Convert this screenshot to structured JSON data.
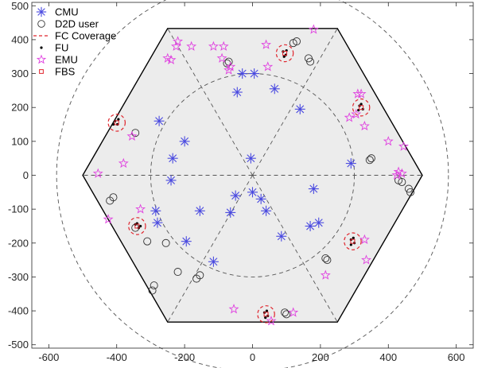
{
  "chart_data": {
    "type": "scatter",
    "title": "",
    "xlabel": "",
    "ylabel": "",
    "xlim": [
      -650,
      650
    ],
    "ylim": [
      -510,
      510
    ],
    "xticks": [
      -600,
      -400,
      -200,
      0,
      200,
      400,
      600
    ],
    "yticks": [
      -500,
      -400,
      -300,
      -200,
      -100,
      0,
      100,
      200,
      300,
      400,
      500
    ],
    "xtick_labels": [
      "-600",
      "-400",
      "-200",
      "0",
      "200",
      "400",
      "600"
    ],
    "ytick_labels": [
      "-500",
      "-400",
      "-300",
      "-200",
      "-100",
      "0",
      "100",
      "200",
      "300",
      "400",
      "500"
    ],
    "grid": false,
    "legend_position": "top-left",
    "cell": {
      "hexagon_radius": 500,
      "inner_circle_radius": 300,
      "outer_circle_radius": 577,
      "hexagon_fill": "#ececec",
      "hexagon_edge": "#000000",
      "dashed_color": "#555555"
    },
    "series": [
      {
        "name": "CMU",
        "marker": "asterisk",
        "color": "#4a4ae0",
        "points": [
          [
            -200,
            100
          ],
          [
            -235,
            50
          ],
          [
            -240,
            -15
          ],
          [
            -275,
            160
          ],
          [
            -285,
            -105
          ],
          [
            -280,
            -140
          ],
          [
            -195,
            -195
          ],
          [
            -155,
            -105
          ],
          [
            -115,
            -255
          ],
          [
            -45,
            245
          ],
          [
            -30,
            300
          ],
          [
            -5,
            50
          ],
          [
            5,
            300
          ],
          [
            65,
            255
          ],
          [
            140,
            195
          ],
          [
            290,
            35
          ],
          [
            -65,
            -110
          ],
          [
            -50,
            -60
          ],
          [
            0,
            -50
          ],
          [
            25,
            -70
          ],
          [
            40,
            -105
          ],
          [
            85,
            -180
          ],
          [
            180,
            -40
          ],
          [
            170,
            -150
          ],
          [
            195,
            -140
          ]
        ]
      },
      {
        "name": "D2D user",
        "marker": "circle",
        "color": "#333333",
        "points": [
          [
            -345,
            125
          ],
          [
            -420,
            -75
          ],
          [
            -410,
            -65
          ],
          [
            -345,
            -155
          ],
          [
            -310,
            -195
          ],
          [
            -255,
            -200
          ],
          [
            -220,
            -285
          ],
          [
            -290,
            -325
          ],
          [
            -295,
            -340
          ],
          [
            -155,
            -295
          ],
          [
            -165,
            -305
          ],
          [
            -75,
            330
          ],
          [
            -70,
            335
          ],
          [
            120,
            390
          ],
          [
            130,
            395
          ],
          [
            165,
            345
          ],
          [
            170,
            335
          ],
          [
            345,
            45
          ],
          [
            350,
            50
          ],
          [
            460,
            -40
          ],
          [
            465,
            -50
          ],
          [
            430,
            -15
          ],
          [
            440,
            -20
          ],
          [
            215,
            -245
          ],
          [
            220,
            -250
          ],
          [
            95,
            -405
          ],
          [
            100,
            -410
          ]
        ]
      },
      {
        "name": "FC Coverage",
        "marker": "dashed-circle",
        "color": "#e0242c",
        "radius": 25,
        "points": [
          [
            -400,
            155
          ],
          [
            -340,
            -150
          ],
          [
            95,
            360
          ],
          [
            320,
            200
          ],
          [
            295,
            -195
          ],
          [
            40,
            -410
          ]
        ]
      },
      {
        "name": "FU",
        "marker": "dot",
        "color": "#000000",
        "points": [
          [
            -405,
            160
          ],
          [
            -398,
            150
          ],
          [
            -410,
            150
          ],
          [
            -395,
            165
          ],
          [
            -345,
            -145
          ],
          [
            -335,
            -155
          ],
          [
            -340,
            -142
          ],
          [
            -330,
            -150
          ],
          [
            90,
            365
          ],
          [
            98,
            355
          ],
          [
            100,
            368
          ],
          [
            93,
            350
          ],
          [
            315,
            205
          ],
          [
            325,
            195
          ],
          [
            320,
            210
          ],
          [
            312,
            192
          ],
          [
            290,
            -190
          ],
          [
            300,
            -200
          ],
          [
            297,
            -185
          ],
          [
            290,
            -205
          ],
          [
            35,
            -405
          ],
          [
            45,
            -415
          ],
          [
            42,
            -400
          ],
          [
            38,
            -420
          ]
        ]
      },
      {
        "name": "EMU",
        "marker": "pentagram",
        "color": "#e040e0",
        "points": [
          [
            -455,
            5
          ],
          [
            -425,
            -130
          ],
          [
            -380,
            35
          ],
          [
            -355,
            115
          ],
          [
            -330,
            -100
          ],
          [
            -250,
            345
          ],
          [
            -240,
            340
          ],
          [
            -225,
            380
          ],
          [
            -220,
            395
          ],
          [
            -180,
            380
          ],
          [
            -115,
            380
          ],
          [
            -90,
            345
          ],
          [
            -85,
            380
          ],
          [
            -70,
            310
          ],
          [
            -65,
            320
          ],
          [
            -55,
            -395
          ],
          [
            40,
            385
          ],
          [
            45,
            320
          ],
          [
            55,
            -430
          ],
          [
            120,
            -405
          ],
          [
            180,
            430
          ],
          [
            215,
            -295
          ],
          [
            285,
            170
          ],
          [
            305,
            180
          ],
          [
            310,
            240
          ],
          [
            320,
            240
          ],
          [
            330,
            145
          ],
          [
            330,
            -190
          ],
          [
            335,
            -250
          ],
          [
            400,
            100
          ],
          [
            425,
            0
          ],
          [
            430,
            10
          ],
          [
            440,
            5
          ],
          [
            445,
            85
          ]
        ]
      },
      {
        "name": "FBS",
        "marker": "square",
        "color": "#e0242c",
        "points": [
          [
            -400,
            155
          ],
          [
            -340,
            -150
          ],
          [
            95,
            360
          ],
          [
            320,
            200
          ],
          [
            295,
            -195
          ],
          [
            40,
            -410
          ]
        ]
      }
    ]
  }
}
